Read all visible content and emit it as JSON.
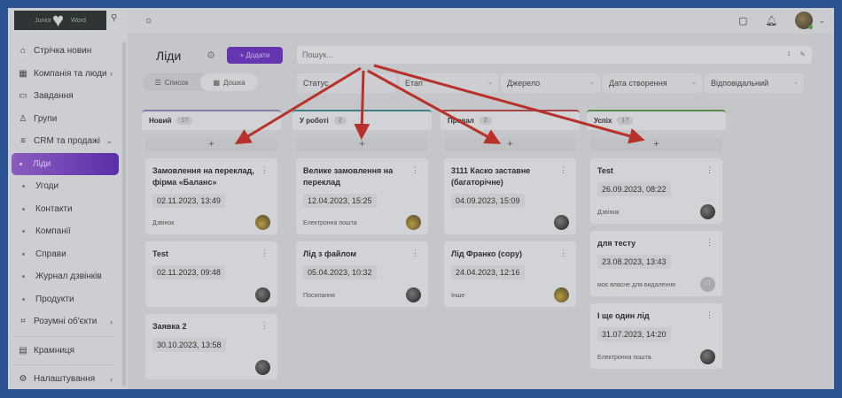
{
  "logo": {
    "text_left": "Junior",
    "text_right": "Word"
  },
  "sidebar": {
    "items": [
      {
        "label": "Стрічка новин",
        "icon": "home-icon"
      },
      {
        "label": "Компанія та люди",
        "icon": "building-icon",
        "chevron": true
      },
      {
        "label": "Завдання",
        "icon": "calendar-icon"
      },
      {
        "label": "Групи",
        "icon": "users-icon"
      },
      {
        "label": "CRM та продажі",
        "icon": "database-icon",
        "expanded": true
      }
    ],
    "sub_items": [
      {
        "label": "Ліди",
        "active": true
      },
      {
        "label": "Угоди"
      },
      {
        "label": "Контакти"
      },
      {
        "label": "Компанії"
      },
      {
        "label": "Справи"
      },
      {
        "label": "Журнал дзвінків"
      },
      {
        "label": "Продукти"
      }
    ],
    "bottom_items": [
      {
        "label": "Розумні об'єкти",
        "icon": "scan-icon"
      },
      {
        "label": "Крамниця",
        "icon": "store-icon"
      },
      {
        "label": "Налаштування",
        "icon": "gear-icon"
      }
    ]
  },
  "header": {
    "title": "Ліди",
    "add_label": "+ Додати",
    "view_list": "Список",
    "view_board": "Дошка",
    "active_view": "Дошка"
  },
  "search": {
    "placeholder": "Пошук...",
    "count": "1"
  },
  "filters": [
    "Статус",
    "Етап",
    "Джерело",
    "Дата створення",
    "Відповідальний"
  ],
  "accent": "#6536b0",
  "columns": [
    {
      "name": "Новий",
      "count": "17",
      "color": "#8a7aa8",
      "cards": [
        {
          "title": "Замовлення на переклад, фірма «Баланс»",
          "date": "02.11.2023, 13:49",
          "source": "Дзвінок"
        },
        {
          "title": "Test",
          "date": "02.11.2023, 09:48",
          "source": ""
        },
        {
          "title": "Заявка 2",
          "date": "30.10.2023, 13:58",
          "source": ""
        }
      ]
    },
    {
      "name": "У роботі",
      "count": "2",
      "color": "#3f7f86",
      "cards": [
        {
          "title": "Велике замовлення на переклад",
          "date": "12.04.2023, 15:25",
          "source": "Електронна пошта"
        },
        {
          "title": "Лід з файлом",
          "date": "05.04.2023, 10:32",
          "source": "Посилання"
        }
      ]
    },
    {
      "name": "Провал",
      "count": "2",
      "color": "#a04848",
      "cards": [
        {
          "title": "3111 Каско заставне (багаторічне)",
          "date": "04.09.2023, 15:09",
          "source": ""
        },
        {
          "title": "Лід Франко (copy)",
          "date": "24.04.2023, 12:16",
          "source": "Інше"
        }
      ]
    },
    {
      "name": "Успіх",
      "count": "17",
      "color": "#5a8a4a",
      "cards": [
        {
          "title": "Test",
          "date": "26.09.2023, 08:22",
          "source": "Дзвінок"
        },
        {
          "title": "для тесту",
          "date": "23.08.2023, 13:43",
          "source": "моє власне для видалення",
          "avatar": "СТ"
        },
        {
          "title": "І ще один лід",
          "date": "31.07.2023, 14:20",
          "source": "Електронна пошта"
        }
      ]
    }
  ]
}
